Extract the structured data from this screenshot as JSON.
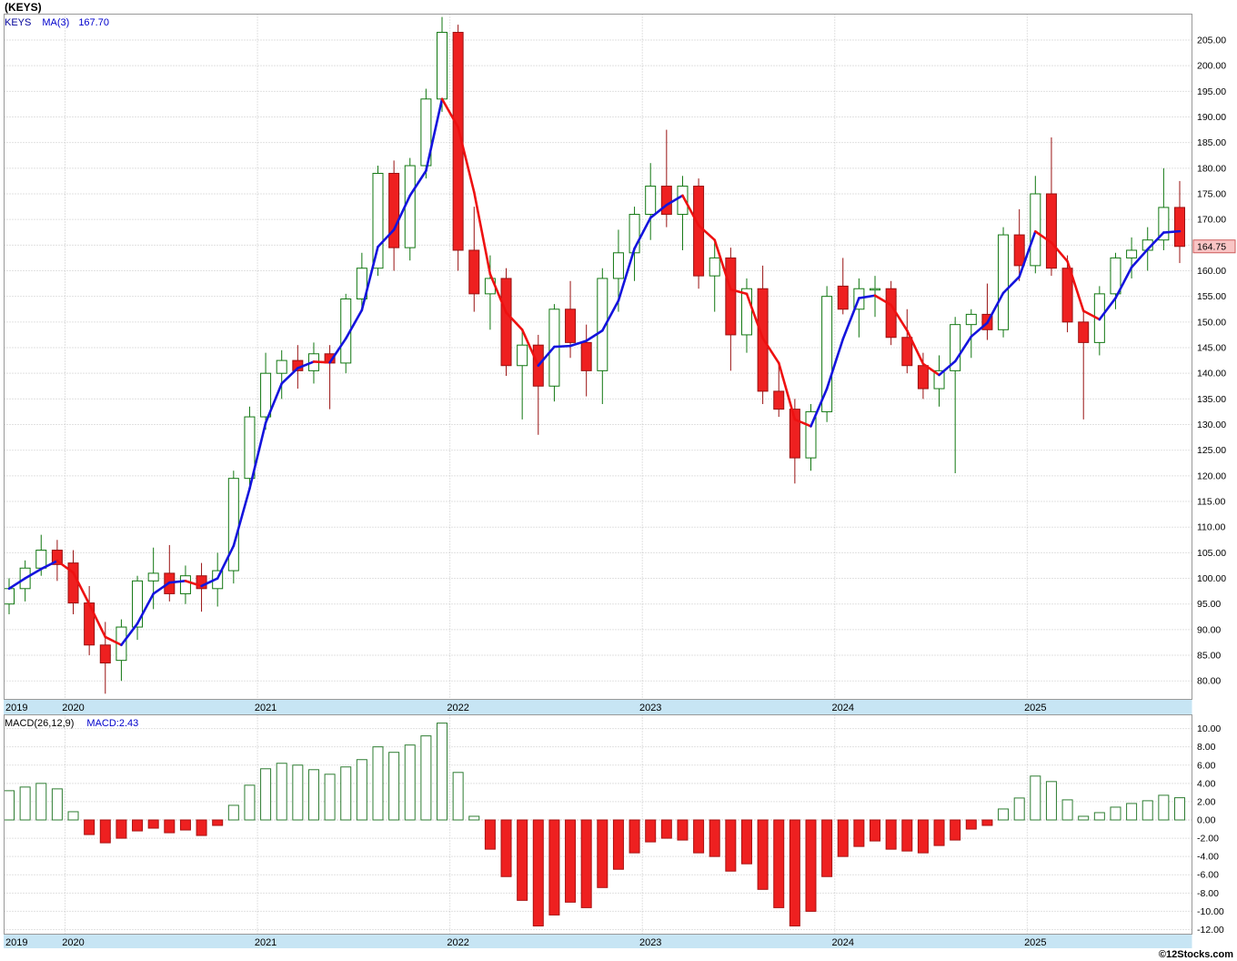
{
  "header": {
    "title": "(KEYS)",
    "legend": {
      "symbol": "KEYS",
      "ma_label": "MA(3)",
      "ma_value": "167.70"
    }
  },
  "price_axis": {
    "min": 80,
    "max": 205,
    "step": 5,
    "last_price_label": "164.75"
  },
  "macd_panel": {
    "legend_label": "MACD(26,12,9)",
    "legend_value": "MACD:2.43",
    "axis": {
      "min": -12,
      "max": 10,
      "step": 2
    }
  },
  "x_axis": {
    "years": [
      {
        "label": "2019",
        "month_index": 0
      },
      {
        "label": "2020",
        "month_index": 4
      },
      {
        "label": "2021",
        "month_index": 16
      },
      {
        "label": "2022",
        "month_index": 28
      },
      {
        "label": "2023",
        "month_index": 40
      },
      {
        "label": "2024",
        "month_index": 52
      },
      {
        "label": "2025",
        "month_index": 64
      }
    ]
  },
  "footer": {
    "watermark": "©12Stocks.com"
  },
  "colors": {
    "up_stroke": "#117711",
    "up_fill": "#ffffff",
    "down_fill": "#ee2020",
    "down_stroke": "#991111",
    "ma_up": "#1414dd",
    "ma_down": "#ee1111",
    "grid": "#c4c4c4",
    "frame": "#999999",
    "band_bg": "#c7e5f4",
    "tag_bg": "#f9c5c5",
    "tag_border": "#cc5a5a",
    "macd_pos_stroke": "#2e7d32",
    "macd_pos_fill": "#ffffff",
    "macd_neg_fill": "#ee2020",
    "macd_neg_stroke": "#aa1111"
  },
  "chart_data": {
    "type": "candlestick",
    "symbol": "KEYS",
    "title": "(KEYS)",
    "frequency": "monthly",
    "overlays": [
      {
        "name": "MA(3)",
        "type": "sma",
        "period": 3,
        "last_value": 167.7,
        "color_rule": "blue when rising, red when falling"
      }
    ],
    "indicator": {
      "name": "MACD(26,12,9)",
      "type": "bar",
      "last_value": 2.43,
      "style": "hollow green when positive, solid red when negative"
    },
    "price_range": [
      80,
      205
    ],
    "macd_range": [
      -12,
      10
    ],
    "columns": [
      "month",
      "open",
      "high",
      "low",
      "close",
      "macd"
    ],
    "months": [
      [
        "2019-09",
        95.0,
        100.0,
        93.0,
        98.0,
        3.2
      ],
      [
        "2019-10",
        98.0,
        103.5,
        95.5,
        102.0,
        3.6
      ],
      [
        "2019-11",
        102.0,
        108.5,
        100.5,
        105.5,
        4.0
      ],
      [
        "2019-12",
        105.5,
        107.5,
        99.5,
        102.7,
        3.4
      ],
      [
        "2020-01",
        103.0,
        105.5,
        93.0,
        95.2,
        0.9
      ],
      [
        "2020-02",
        95.2,
        98.5,
        85.0,
        87.0,
        -1.6
      ],
      [
        "2020-03",
        87.0,
        91.5,
        77.5,
        83.5,
        -2.5
      ],
      [
        "2020-04",
        84.0,
        92.0,
        80.0,
        90.5,
        -2.0
      ],
      [
        "2020-05",
        90.5,
        100.5,
        88.0,
        99.5,
        -1.2
      ],
      [
        "2020-06",
        99.5,
        106.0,
        94.0,
        101.0,
        -0.9
      ],
      [
        "2020-07",
        101.0,
        106.5,
        95.5,
        97.0,
        -1.4
      ],
      [
        "2020-08",
        97.0,
        102.5,
        95.0,
        100.5,
        -1.1
      ],
      [
        "2020-09",
        100.5,
        103.0,
        93.5,
        98.0,
        -1.7
      ],
      [
        "2020-10",
        98.0,
        105.0,
        94.5,
        101.5,
        -0.6
      ],
      [
        "2020-11",
        101.5,
        121.0,
        99.0,
        119.5,
        1.6
      ],
      [
        "2020-12",
        119.5,
        133.5,
        117.0,
        131.5,
        3.8
      ],
      [
        "2021-01",
        131.5,
        144.0,
        129.0,
        140.0,
        5.6
      ],
      [
        "2021-02",
        140.0,
        144.5,
        135.0,
        142.5,
        6.2
      ],
      [
        "2021-03",
        142.5,
        145.5,
        137.0,
        140.5,
        6.0
      ],
      [
        "2021-04",
        140.5,
        146.0,
        138.0,
        143.8,
        5.5
      ],
      [
        "2021-05",
        143.8,
        145.5,
        133.0,
        142.0,
        5.0
      ],
      [
        "2021-06",
        142.0,
        155.5,
        140.0,
        154.5,
        5.8
      ],
      [
        "2021-07",
        154.5,
        163.5,
        152.0,
        160.5,
        6.6
      ],
      [
        "2021-08",
        160.5,
        180.5,
        159.0,
        179.0,
        8.0
      ],
      [
        "2021-09",
        179.0,
        181.5,
        160.0,
        164.5,
        7.4
      ],
      [
        "2021-10",
        164.5,
        182.0,
        162.0,
        180.5,
        8.2
      ],
      [
        "2021-11",
        180.5,
        195.5,
        178.0,
        193.5,
        9.2
      ],
      [
        "2021-12",
        193.5,
        209.5,
        191.0,
        206.5,
        10.6
      ],
      [
        "2022-01",
        206.5,
        208.0,
        160.0,
        164.0,
        5.2
      ],
      [
        "2022-02",
        164.0,
        172.5,
        152.0,
        155.5,
        0.4
      ],
      [
        "2022-03",
        155.5,
        163.0,
        148.5,
        158.5,
        -3.2
      ],
      [
        "2022-04",
        158.5,
        160.5,
        139.5,
        141.5,
        -6.2
      ],
      [
        "2022-05",
        141.5,
        148.5,
        131.0,
        145.5,
        -8.8
      ],
      [
        "2022-06",
        145.5,
        147.5,
        128.0,
        137.5,
        -11.6
      ],
      [
        "2022-07",
        137.5,
        153.5,
        134.5,
        152.5,
        -10.4
      ],
      [
        "2022-08",
        152.5,
        158.0,
        143.0,
        146.0,
        -9.0
      ],
      [
        "2022-09",
        146.0,
        149.5,
        135.5,
        140.5,
        -9.6
      ],
      [
        "2022-10",
        140.5,
        160.5,
        134.0,
        158.5,
        -7.4
      ],
      [
        "2022-11",
        158.5,
        168.0,
        152.0,
        163.5,
        -5.4
      ],
      [
        "2022-12",
        163.5,
        172.5,
        158.0,
        171.0,
        -3.6
      ],
      [
        "2023-01",
        171.0,
        181.0,
        166.0,
        176.5,
        -2.4
      ],
      [
        "2023-02",
        176.5,
        187.5,
        168.5,
        171.0,
        -2.0
      ],
      [
        "2023-03",
        171.0,
        178.5,
        164.0,
        176.5,
        -2.2
      ],
      [
        "2023-04",
        176.5,
        178.0,
        156.5,
        159.0,
        -3.6
      ],
      [
        "2023-05",
        159.0,
        165.5,
        152.0,
        162.5,
        -4.0
      ],
      [
        "2023-06",
        162.5,
        164.5,
        140.5,
        147.5,
        -5.6
      ],
      [
        "2023-07",
        147.5,
        158.5,
        144.0,
        156.5,
        -4.8
      ],
      [
        "2023-08",
        156.5,
        161.0,
        134.0,
        136.5,
        -7.6
      ],
      [
        "2023-09",
        136.5,
        142.0,
        131.5,
        133.0,
        -9.6
      ],
      [
        "2023-10",
        133.0,
        135.0,
        118.5,
        123.5,
        -11.6
      ],
      [
        "2023-11",
        123.5,
        134.0,
        121.0,
        132.5,
        -10.0
      ],
      [
        "2023-12",
        132.5,
        157.0,
        130.5,
        155.0,
        -6.2
      ],
      [
        "2024-01",
        157.0,
        162.5,
        151.5,
        152.5,
        -4.0
      ],
      [
        "2024-02",
        152.5,
        158.5,
        147.0,
        156.5,
        -2.9
      ],
      [
        "2024-03",
        156.5,
        159.0,
        151.0,
        156.5,
        -2.3
      ],
      [
        "2024-04",
        156.5,
        158.0,
        145.5,
        147.0,
        -3.2
      ],
      [
        "2024-05",
        147.0,
        152.5,
        140.0,
        141.5,
        -3.4
      ],
      [
        "2024-06",
        141.5,
        144.0,
        135.0,
        137.0,
        -3.6
      ],
      [
        "2024-07",
        137.0,
        143.5,
        133.5,
        140.5,
        -2.8
      ],
      [
        "2024-08",
        140.5,
        151.0,
        120.5,
        149.5,
        -2.2
      ],
      [
        "2024-09",
        149.5,
        152.5,
        143.0,
        151.5,
        -1.0
      ],
      [
        "2024-10",
        151.5,
        157.5,
        146.5,
        148.5,
        -0.6
      ],
      [
        "2024-11",
        148.5,
        168.5,
        147.0,
        167.0,
        1.2
      ],
      [
        "2024-12",
        167.0,
        172.0,
        158.0,
        161.0,
        2.4
      ],
      [
        "2025-01",
        161.0,
        178.5,
        159.5,
        175.0,
        4.8
      ],
      [
        "2025-02",
        175.0,
        186.0,
        159.0,
        160.5,
        4.2
      ],
      [
        "2025-03",
        160.5,
        163.0,
        148.0,
        150.0,
        2.2
      ],
      [
        "2025-04",
        150.0,
        152.0,
        131.0,
        146.0,
        0.4
      ],
      [
        "2025-05",
        146.0,
        157.0,
        143.5,
        155.5,
        0.8
      ],
      [
        "2025-06",
        155.5,
        163.5,
        152.5,
        162.5,
        1.4
      ],
      [
        "2025-07",
        162.5,
        166.5,
        158.5,
        164.0,
        1.8
      ],
      [
        "2025-08",
        164.0,
        168.5,
        160.0,
        166.0,
        2.1
      ],
      [
        "2025-09",
        166.0,
        180.0,
        164.0,
        172.35,
        2.7
      ],
      [
        "2025-10",
        172.35,
        177.5,
        161.5,
        164.75,
        2.43
      ]
    ]
  }
}
